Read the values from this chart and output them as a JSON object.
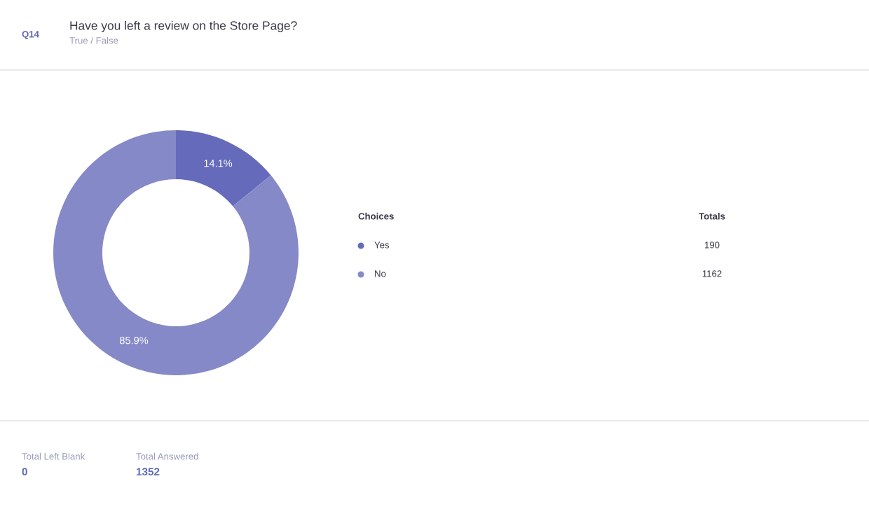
{
  "chart_data": {
    "type": "donut",
    "title": "Have you left a review on the Store Page?",
    "subtitle": "True / False",
    "categories": [
      "Yes",
      "No"
    ],
    "values": [
      14.1,
      85.9
    ],
    "colors": [
      "#656bba",
      "#8589c8"
    ],
    "value_labels": [
      "14.1%",
      "85.9%"
    ],
    "legend": "right",
    "legend_title": "Choices",
    "annotations": [
      "Q14",
      "Totals",
      "190",
      "1162",
      "Total Left Blank",
      "0",
      "Total Answered",
      "1352"
    ]
  }
}
